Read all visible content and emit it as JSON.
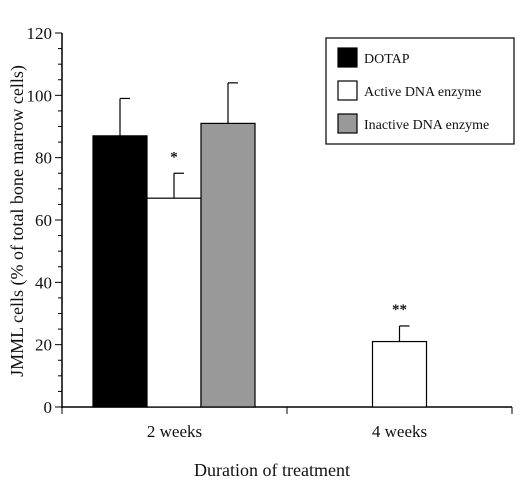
{
  "chart_data": {
    "type": "bar",
    "categories": [
      "2 weeks",
      "4 weeks"
    ],
    "series": [
      {
        "name": "DOTAP",
        "color": "#000000",
        "values": [
          87,
          null
        ],
        "errors": [
          12,
          null
        ],
        "annotations": [
          "",
          ""
        ]
      },
      {
        "name": "Active DNA enzyme",
        "color": "#ffffff",
        "values": [
          67,
          21
        ],
        "errors": [
          8,
          5
        ],
        "annotations": [
          "*",
          "**"
        ]
      },
      {
        "name": "Inactive DNA enzyme",
        "color": "#999999",
        "values": [
          91,
          null
        ],
        "errors": [
          13,
          null
        ],
        "annotations": [
          "",
          ""
        ]
      }
    ],
    "xlabel": "Duration of treatment",
    "ylabel": "JMML cells (% of total bone marrow cells)",
    "ylim": [
      0,
      120
    ],
    "yticks": [
      "0",
      "20",
      "40",
      "60",
      "80",
      "100",
      "120"
    ],
    "legend_position": "top-right",
    "grid": false
  }
}
